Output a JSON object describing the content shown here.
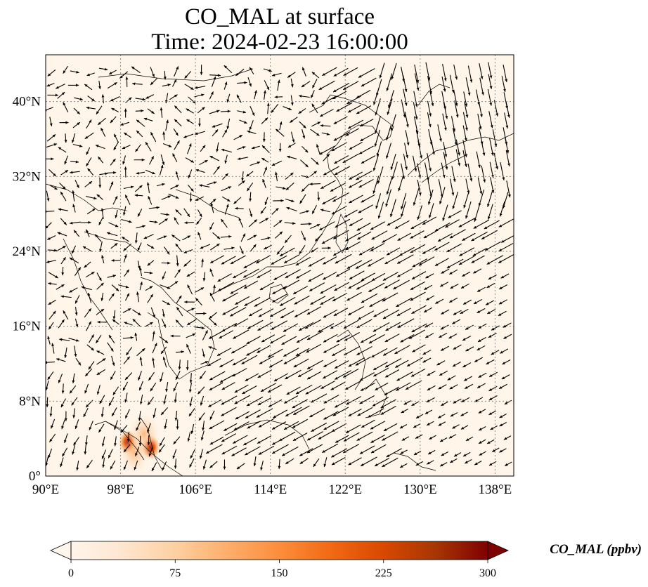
{
  "title": {
    "line1": "CO_MAL at surface",
    "line2": "Time: 2024-02-23 16:00:00"
  },
  "map": {
    "lon_range": [
      90,
      140
    ],
    "lat_range": [
      0,
      45
    ],
    "lon_ticks": [
      "90°E",
      "98°E",
      "106°E",
      "114°E",
      "122°E",
      "130°E",
      "138°E"
    ],
    "lat_ticks": [
      "0°",
      "8°N",
      "16°N",
      "24°N",
      "32°N",
      "40°N"
    ],
    "lon_tick_values": [
      90,
      98,
      106,
      114,
      122,
      130,
      138
    ],
    "lat_tick_values": [
      0,
      8,
      16,
      24,
      32,
      40
    ],
    "gridlines": "dotted",
    "land_color": "#fff5e8",
    "coastline_color": "#000000",
    "vector_field": "surface wind arrows",
    "hotspots": [
      {
        "lon": 98.8,
        "lat": 3.6,
        "level": "high"
      },
      {
        "lon": 101.2,
        "lat": 3.1,
        "level": "high"
      },
      {
        "lon": 100.5,
        "lat": 4.5,
        "level": "moderate"
      },
      {
        "lon": 99.5,
        "lat": 2.5,
        "level": "moderate"
      }
    ]
  },
  "colorbar": {
    "label": "CO_MAL (ppbv)",
    "ticks": [
      "0",
      "75",
      "150",
      "225",
      "300"
    ],
    "min": 0,
    "max": 300,
    "colors": [
      "#fff5eb",
      "#fee6ce",
      "#fdd0a2",
      "#fdae6b",
      "#fd8d3c",
      "#f16913",
      "#d94801",
      "#a63603",
      "#7f0000"
    ]
  }
}
